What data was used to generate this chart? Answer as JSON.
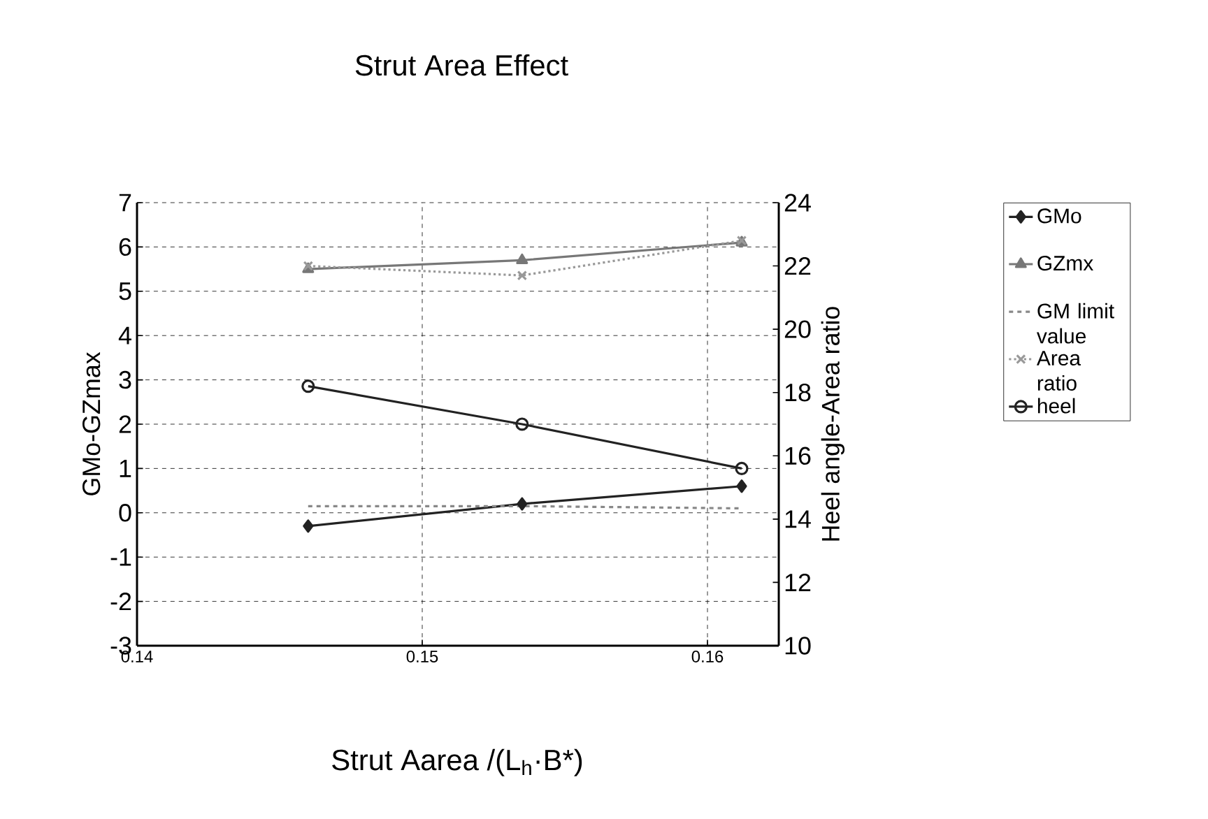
{
  "chart_data": {
    "type": "line",
    "title": "Strut Area Effect",
    "xlabel": "Strut Aarea /(L$_{h}$·B*)",
    "ylabel": "GMo-GZmax",
    "y2label": "Heel angle-Area ratio",
    "x": [
      0.146,
      0.1535,
      0.1612
    ],
    "series": [
      {
        "name": "GMo",
        "color": "#222222",
        "values": [
          -0.3,
          0.2,
          0.6
        ],
        "marker": "diamond",
        "line_style": "solid"
      },
      {
        "name": "GZmx",
        "color": "#777777",
        "values": [
          5.5,
          5.7,
          6.1
        ],
        "marker": "triangle",
        "line_style": "solid"
      },
      {
        "name": "GM limit value",
        "color": "#888888",
        "values": [
          0.15,
          0.15,
          0.1
        ],
        "marker": "none",
        "line_style": "dashed"
      },
      {
        "name": "Area ratio",
        "color": "#999999",
        "values": [
          22.0,
          21.7,
          22.8
        ],
        "marker": "cross",
        "line_style": "dotted",
        "axis": "y2"
      },
      {
        "name": "heel",
        "color": "#222222",
        "values": [
          18.2,
          17.0,
          15.6
        ],
        "marker": "circle",
        "line_style": "solid",
        "axis": "y2"
      }
    ],
    "xlim": [
      0.14,
      0.1625
    ],
    "xticks": [
      0.14,
      0.15,
      0.16
    ],
    "ylim": [
      -3,
      7
    ],
    "yticks": [
      -3,
      -2,
      -1,
      0,
      1,
      2,
      3,
      4,
      5,
      6,
      7
    ],
    "y2lim": [
      10,
      24
    ],
    "y2ticks": [
      10,
      12,
      14,
      16,
      18,
      20,
      22,
      24
    ],
    "grid": true,
    "legend": "right"
  }
}
